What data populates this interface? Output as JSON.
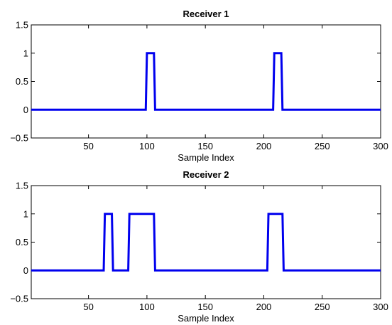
{
  "chart_data": [
    {
      "type": "line",
      "title": "Receiver 1",
      "xlabel": "Sample Index",
      "ylabel": "",
      "xlim": [
        1,
        300
      ],
      "ylim": [
        -0.5,
        1.5
      ],
      "xticks": [
        50,
        100,
        150,
        200,
        250,
        300
      ],
      "yticks": [
        -0.5,
        0,
        0.5,
        1,
        1.5
      ],
      "xtick_labels": [
        "50",
        "100",
        "150",
        "200",
        "250",
        "300"
      ],
      "ytick_labels": [
        "−0.5",
        "0",
        "0.5",
        "1",
        "1.5"
      ],
      "grid": false,
      "series": [
        {
          "color": "#0000ee",
          "x": [
            1,
            99,
            100,
            106,
            107,
            208,
            209,
            215,
            216,
            300
          ],
          "y": [
            0,
            0,
            1,
            1,
            0,
            0,
            1,
            1,
            0,
            0
          ]
        }
      ]
    },
    {
      "type": "line",
      "title": "Receiver 2",
      "xlabel": "Sample Index",
      "ylabel": "",
      "xlim": [
        1,
        300
      ],
      "ylim": [
        -0.5,
        1.5
      ],
      "xticks": [
        50,
        100,
        150,
        200,
        250,
        300
      ],
      "yticks": [
        -0.5,
        0,
        0.5,
        1,
        1.5
      ],
      "xtick_labels": [
        "50",
        "100",
        "150",
        "200",
        "250",
        "300"
      ],
      "ytick_labels": [
        "−0.5",
        "0",
        "0.5",
        "1",
        "1.5"
      ],
      "grid": false,
      "series": [
        {
          "color": "#0000ee",
          "x": [
            1,
            63,
            64,
            70,
            71,
            84,
            85,
            106,
            107,
            203,
            204,
            216,
            217,
            300
          ],
          "y": [
            0,
            0,
            1,
            1,
            0,
            0,
            1,
            1,
            0,
            0,
            1,
            1,
            0,
            0
          ]
        }
      ]
    }
  ]
}
